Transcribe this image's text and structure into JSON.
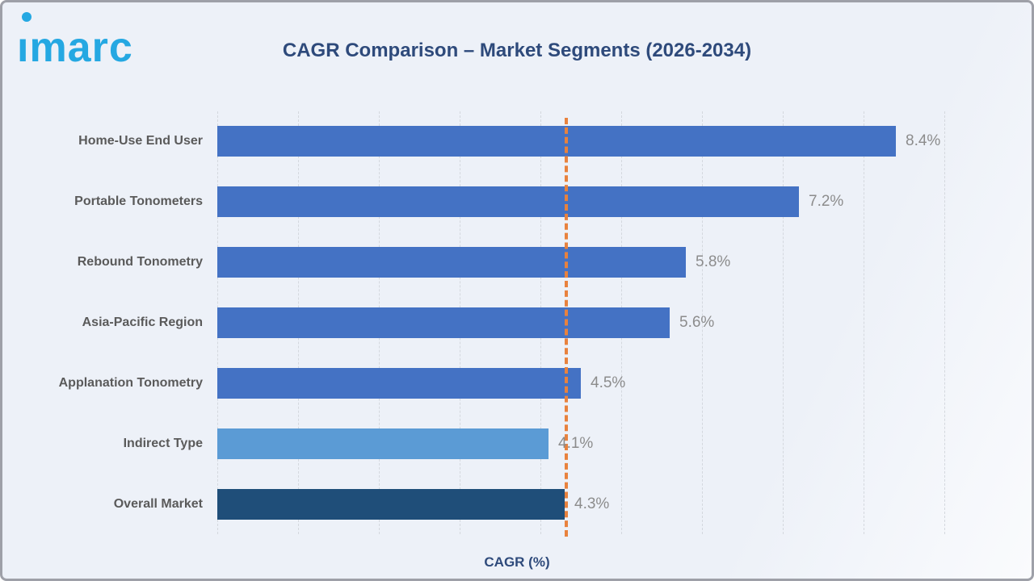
{
  "header": {
    "logo_text": "imarc",
    "title": "CAGR Comparison – Market Segments (2026-2034)"
  },
  "chart_data": {
    "type": "bar",
    "orientation": "horizontal",
    "title": "CAGR Comparison – Market Segments (2026-2034)",
    "categories": [
      "Home-Use End User",
      "Portable Tonometers",
      "Rebound Tonometry",
      "Asia-Pacific Region",
      "Applanation Tonometry",
      "Indirect Type",
      "Overall Market"
    ],
    "values": [
      8.4,
      7.2,
      5.8,
      5.6,
      4.5,
      4.1,
      4.3
    ],
    "value_labels": [
      "8.4%",
      "7.2%",
      "5.8%",
      "5.6%",
      "4.5%",
      "4.1%",
      "4.3%"
    ],
    "bar_colors": [
      "#4472C4",
      "#4472C4",
      "#4472C4",
      "#4472C4",
      "#4472C4",
      "#5B9BD5",
      "#1F4E79"
    ],
    "xlabel": "CAGR (%)",
    "xlim": [
      0,
      9.75
    ],
    "grid_step": 1,
    "grid": true,
    "legend_position": "none",
    "reference_line": {
      "value": 4.3,
      "style": "dashed",
      "color": "#E8823E"
    }
  },
  "colors": {
    "background": "#EDF1F8",
    "frame_border": "#9EA0A8",
    "logo_blue": "#25A8E2",
    "title_navy": "#2E4A7B",
    "bar_default": "#4472C4",
    "bar_light": "#5B9BD5",
    "bar_dark": "#1F4E79",
    "category_label": "#5A5A5A",
    "value_label": "#8C8C8C",
    "gridline": "#D4D8DE",
    "reference_line": "#E8823E"
  }
}
